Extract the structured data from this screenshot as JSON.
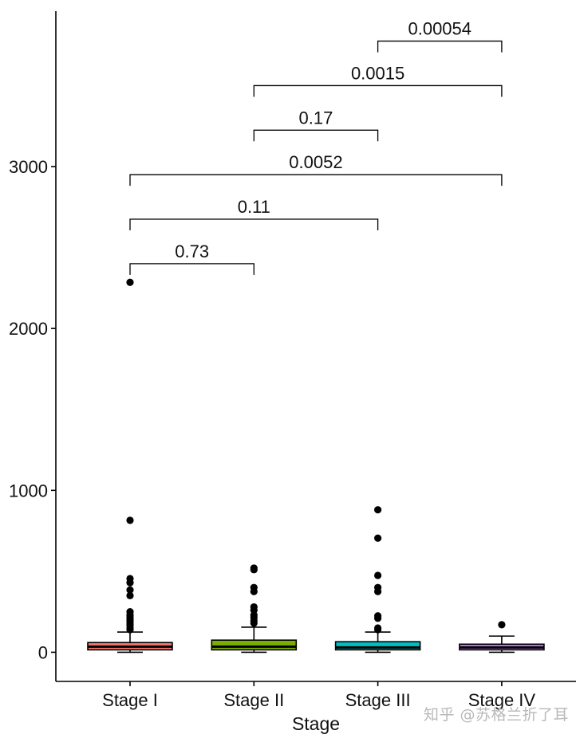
{
  "chart_data": {
    "type": "box",
    "xlabel": "Stage",
    "ylabel": "",
    "ylim": [
      -180,
      3960
    ],
    "y_ticks": [
      0,
      1000,
      2000,
      3000
    ],
    "y_tick_labels": [
      "0",
      "1000",
      "2000",
      "3000"
    ],
    "categories": [
      "Stage I",
      "Stage II",
      "Stage III",
      "Stage IV"
    ],
    "boxes": [
      {
        "category": "Stage I",
        "color": "#F8766D",
        "min": 0,
        "q1": 15,
        "median": 35,
        "q3": 60,
        "whisker_high": 125,
        "outliers": [
          2285,
          815,
          455,
          430,
          385,
          350,
          250,
          230,
          215,
          200,
          190,
          175,
          165,
          150,
          140
        ]
      },
      {
        "category": "Stage II",
        "color": "#7CAE00",
        "min": 0,
        "q1": 15,
        "median": 35,
        "q3": 75,
        "whisker_high": 155,
        "outliers": [
          520,
          510,
          400,
          375,
          280,
          260,
          230,
          215,
          195,
          180
        ]
      },
      {
        "category": "Stage III",
        "color": "#00BFC4",
        "min": 0,
        "q1": 15,
        "median": 30,
        "q3": 65,
        "whisker_high": 125,
        "outliers": [
          880,
          705,
          475,
          400,
          375,
          225,
          210,
          150,
          140
        ]
      },
      {
        "category": "Stage IV",
        "color": "#C77CFF",
        "min": 0,
        "q1": 15,
        "median": 30,
        "q3": 50,
        "whisker_high": 100,
        "outliers": [
          170
        ]
      }
    ],
    "comparisons": [
      {
        "groups": [
          "Stage I",
          "Stage II"
        ],
        "p": "0.73",
        "y": 2400
      },
      {
        "groups": [
          "Stage I",
          "Stage III"
        ],
        "p": "0.11",
        "y": 2675
      },
      {
        "groups": [
          "Stage I",
          "Stage IV"
        ],
        "p": "0.0052",
        "y": 2950
      },
      {
        "groups": [
          "Stage II",
          "Stage III"
        ],
        "p": "0.17",
        "y": 3225
      },
      {
        "groups": [
          "Stage II",
          "Stage IV"
        ],
        "p": "0.0015",
        "y": 3500
      },
      {
        "groups": [
          "Stage III",
          "Stage IV"
        ],
        "p": "0.00054",
        "y": 3775
      }
    ]
  },
  "watermark": "知乎 @苏格兰折了耳"
}
